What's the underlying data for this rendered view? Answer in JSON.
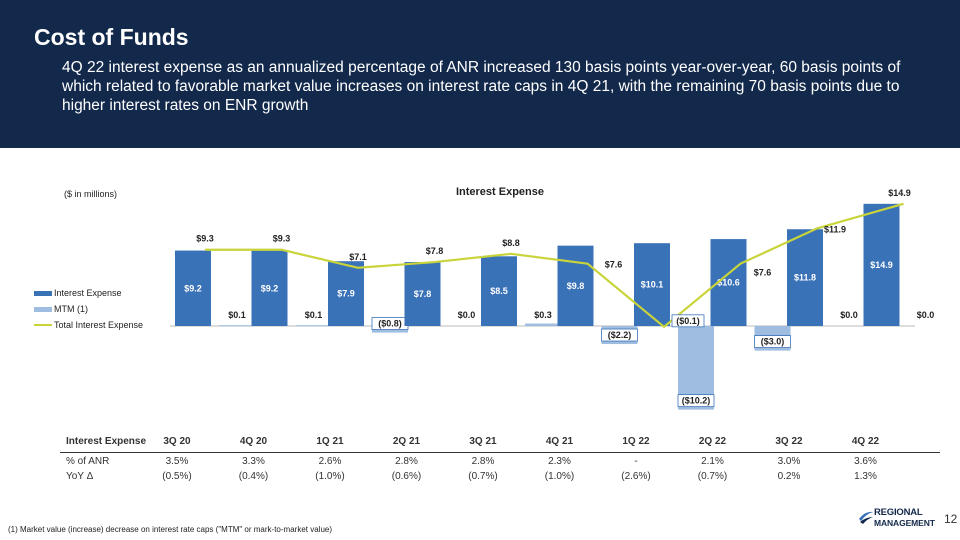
{
  "header": {
    "title": "Cost of Funds",
    "subtitle": "4Q 22 interest expense as an annualized percentage of ANR increased 130 basis points year-over-year, 60 basis points of which related to favorable market value increases on interest rate caps in 4Q 21, with the remaining 70 basis points due to higher interest rates on ENR growth"
  },
  "chart_labels": {
    "units": "($ in millions)",
    "title": "Interest Expense"
  },
  "legend": {
    "interest_expense": "Interest Expense",
    "mtm": "MTM (1)",
    "total": "Total Interest Expense"
  },
  "colors": {
    "bar": "#3a72b8",
    "mtm": "#9fbde0",
    "line": "#c8d43a",
    "header": "#13294b"
  },
  "chart_data": {
    "type": "bar",
    "title": "Interest Expense",
    "ylabel": "($ in millions)",
    "categories": [
      "3Q 20",
      "4Q 20",
      "1Q 21",
      "2Q 21",
      "3Q 21",
      "4Q 21",
      "1Q 22",
      "2Q 22",
      "3Q 22",
      "4Q 22"
    ],
    "series": [
      {
        "name": "Interest Expense",
        "values": [
          9.2,
          9.2,
          7.9,
          7.8,
          8.5,
          9.8,
          10.1,
          10.6,
          11.8,
          14.9
        ],
        "labels": [
          "$9.2",
          "$9.2",
          "$7.9",
          "$7.8",
          "$8.5",
          "$9.8",
          "$10.1",
          "$10.6",
          "$11.8",
          "$14.9"
        ]
      },
      {
        "name": "MTM (1)",
        "values": [
          0.1,
          0.1,
          -0.8,
          0.0,
          0.3,
          -2.2,
          -10.2,
          -3.0,
          0.0,
          0.0
        ],
        "labels": [
          "$0.1",
          "$0.1",
          "($0.8)",
          "$0.0",
          "$0.3",
          "($2.2)",
          "($10.2)",
          "($3.0)",
          "$0.0",
          "$0.0"
        ]
      },
      {
        "name": "Total Interest Expense",
        "type": "line",
        "values": [
          9.3,
          9.3,
          7.1,
          7.8,
          8.8,
          7.6,
          -0.1,
          7.6,
          11.9,
          14.9
        ],
        "labels": [
          "$9.3",
          "$9.3",
          "$7.1",
          "$7.8",
          "$8.8",
          "$7.6",
          "($0.1)",
          "$7.6",
          "$11.9",
          "$14.9"
        ]
      }
    ]
  },
  "table": {
    "header_label": "Interest Expense",
    "columns": [
      "3Q 20",
      "4Q 20",
      "1Q 21",
      "2Q 21",
      "3Q 21",
      "4Q 21",
      "1Q 22",
      "2Q 22",
      "3Q 22",
      "4Q 22"
    ],
    "rows": [
      {
        "label": "% of ANR",
        "values": [
          "3.5%",
          "3.3%",
          "2.6%",
          "2.8%",
          "2.8%",
          "2.3%",
          "-",
          "2.1%",
          "3.0%",
          "3.6%"
        ]
      },
      {
        "label": "YoY Δ",
        "values": [
          "(0.5%)",
          "(0.4%)",
          "(1.0%)",
          "(0.6%)",
          "(0.7%)",
          "(1.0%)",
          "(2.6%)",
          "(0.7%)",
          "0.2%",
          "1.3%"
        ]
      }
    ]
  },
  "footnote": "(1) Market value (increase) decrease on interest rate caps (\"MTM\" or mark-to-market value)",
  "logo": {
    "line1": "REGIONAL",
    "line2": "MANAGEMENT"
  },
  "page_number": "12"
}
